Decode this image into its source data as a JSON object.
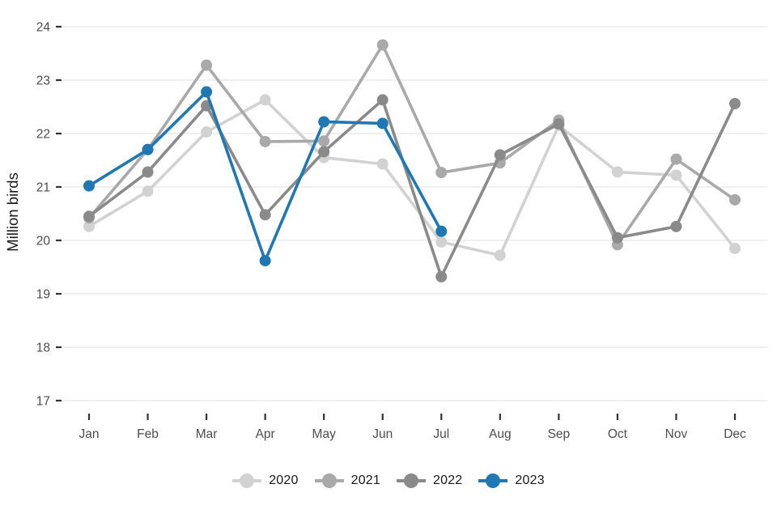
{
  "chart_data": {
    "type": "line",
    "title": "",
    "xlabel": "",
    "ylabel": "Million birds",
    "categories": [
      "Jan",
      "Feb",
      "Mar",
      "Apr",
      "May",
      "Jun",
      "Jul",
      "Aug",
      "Sep",
      "Oct",
      "Nov",
      "Dec"
    ],
    "ylim": [
      17,
      24
    ],
    "yticks": [
      17,
      18,
      19,
      20,
      21,
      22,
      23,
      24
    ],
    "grid": "horizontal-only",
    "legend_position": "bottom",
    "series": [
      {
        "name": "2020",
        "color": "#d2d2d2",
        "values": [
          20.26,
          20.92,
          22.03,
          22.63,
          21.55,
          21.43,
          19.97,
          19.72,
          22.15,
          21.28,
          21.22,
          19.85
        ]
      },
      {
        "name": "2021",
        "color": "#a9a9a9",
        "values": [
          20.42,
          21.7,
          23.28,
          21.85,
          21.86,
          23.66,
          21.27,
          21.45,
          22.25,
          19.92,
          21.52,
          20.76
        ]
      },
      {
        "name": "2022",
        "color": "#8a8a8a",
        "values": [
          20.45,
          21.28,
          22.52,
          20.48,
          21.66,
          22.63,
          19.32,
          21.6,
          22.18,
          20.05,
          20.26,
          22.56
        ]
      },
      {
        "name": "2023",
        "color": "#1f78b4",
        "values": [
          21.02,
          21.7,
          22.78,
          19.62,
          22.22,
          22.19,
          20.17,
          null,
          null,
          null,
          null,
          null
        ]
      }
    ]
  },
  "colors": {
    "background": "#ffffff",
    "gridline": "#ebebeb",
    "tick_mark": "#333333",
    "axis_text": "#4d4d4d",
    "axis_title": "#1a1a1a"
  }
}
